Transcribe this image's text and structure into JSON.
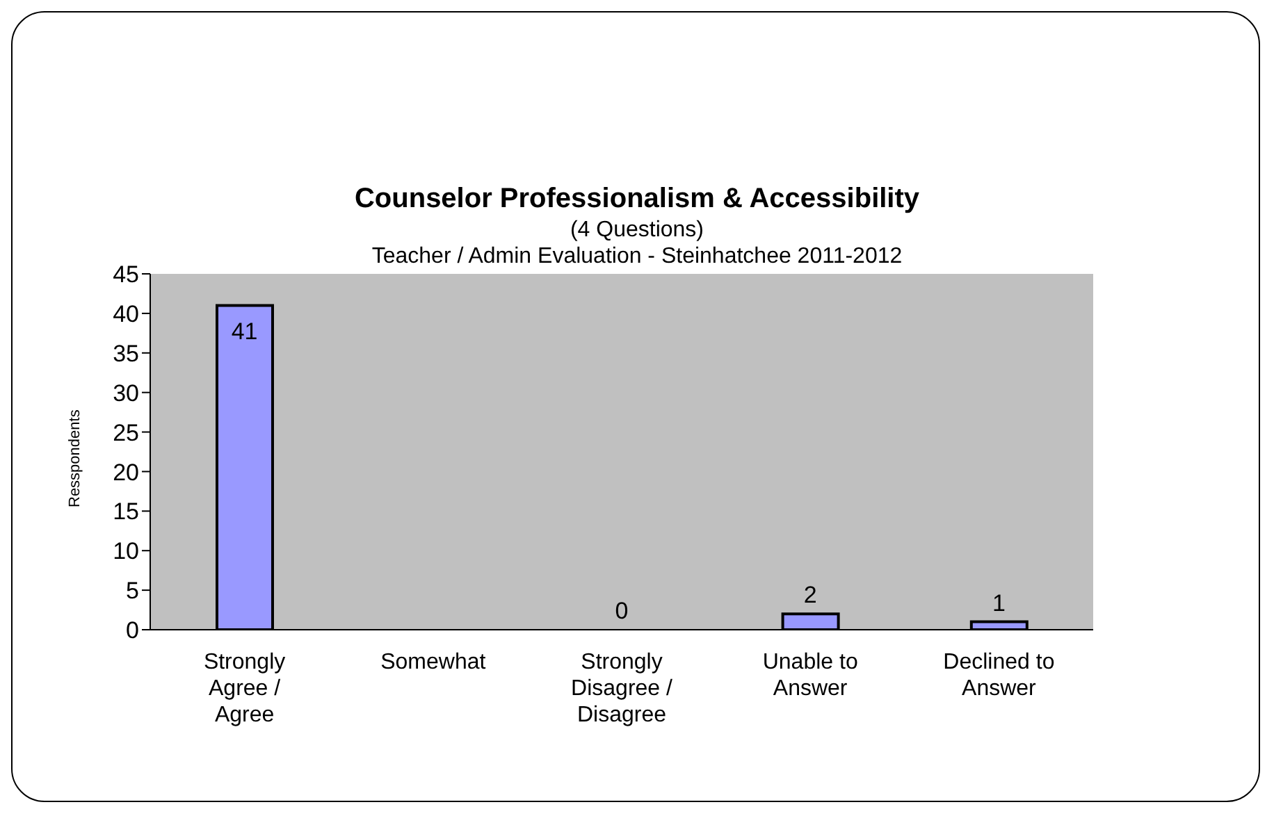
{
  "chart_data": {
    "type": "bar",
    "title": "Counselor Professionalism & Accessibility",
    "subtitle": "(4 Questions)\nTeacher / Admin Evaluation - Steinhatchee 2011-2012",
    "ylabel": "Resspondents",
    "categories": [
      "Strongly Agree / Agree",
      "Somewhat",
      "Strongly Disagree / Disagree",
      "Unable to Answer",
      "Declined to Answer"
    ],
    "values": [
      41,
      0,
      0,
      2,
      1
    ],
    "value_labels": [
      "41",
      null,
      "0",
      "2",
      "1"
    ],
    "color": "#9999ff",
    "ylim": [
      0,
      45
    ],
    "yticks": [
      0,
      5,
      10,
      15,
      20,
      25,
      30,
      35,
      40,
      45
    ],
    "grid": false
  }
}
